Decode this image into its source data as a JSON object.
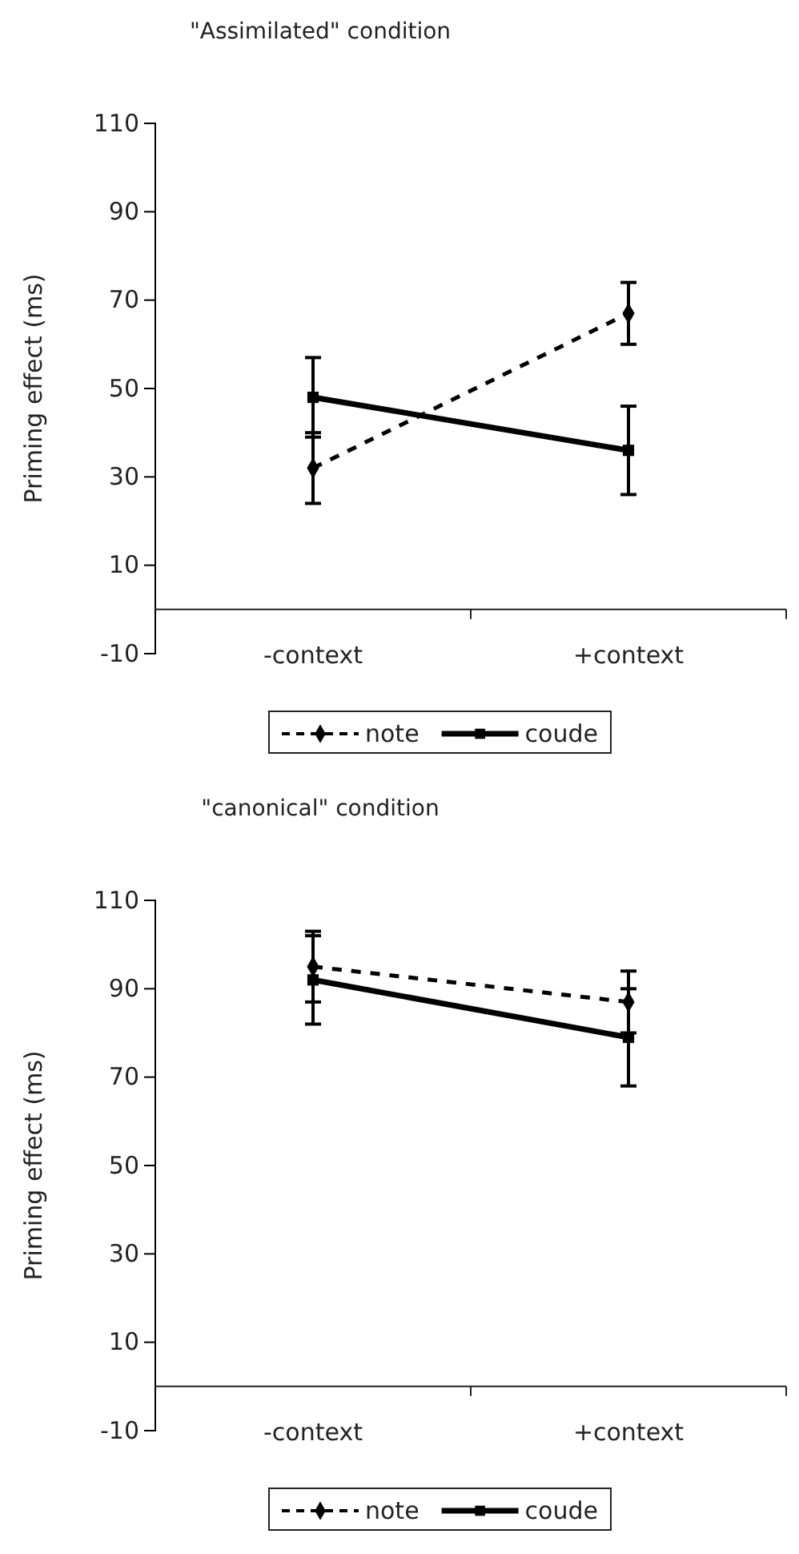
{
  "chart_data": [
    {
      "type": "line",
      "title": "\"Assimilated\" condition",
      "ylabel": "Priming effect (ms)",
      "categories": [
        "-context",
        "+context"
      ],
      "ylim": [
        -10,
        110
      ],
      "yticks": [
        -10,
        10,
        30,
        50,
        70,
        90,
        110
      ],
      "legend": "bottom",
      "grid": false,
      "series": [
        {
          "name": "note",
          "color": "#000000",
          "values": [
            32,
            67
          ],
          "errors": [
            [
              24,
              40
            ],
            [
              60,
              74
            ]
          ],
          "marker": "diamond",
          "line_style": "dashed"
        },
        {
          "name": "coude",
          "color": "#000000",
          "values": [
            48,
            36
          ],
          "errors": [
            [
              39,
              57
            ],
            [
              26,
              46
            ]
          ],
          "marker": "square",
          "line_style": "solid"
        }
      ]
    },
    {
      "type": "line",
      "title": "\"canonical\" condition",
      "ylabel": "Priming effect (ms)",
      "categories": [
        "-context",
        "+context"
      ],
      "ylim": [
        -10,
        110
      ],
      "yticks": [
        -10,
        10,
        30,
        50,
        70,
        90,
        110
      ],
      "legend": "bottom",
      "grid": false,
      "series": [
        {
          "name": "note",
          "color": "#000000",
          "values": [
            95,
            87
          ],
          "errors": [
            [
              87,
              103
            ],
            [
              80,
              94
            ]
          ],
          "marker": "diamond",
          "line_style": "dashed"
        },
        {
          "name": "coude",
          "color": "#000000",
          "values": [
            92,
            79
          ],
          "errors": [
            [
              82,
              102
            ],
            [
              68,
              90
            ]
          ],
          "marker": "square",
          "line_style": "solid"
        }
      ]
    }
  ]
}
